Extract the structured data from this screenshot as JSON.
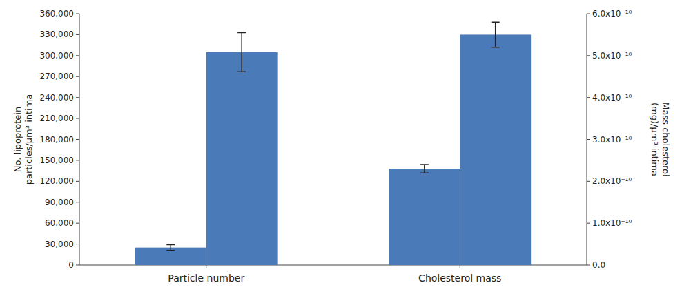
{
  "chart_data": {
    "type": "bar",
    "categories": [
      "Particle number",
      "Cholesterol mass"
    ],
    "y_label": "No. lipoprotein\nparticles/μm³ intima",
    "y2_label": "Mass cholesterol\n(mg)/μm³ intima",
    "ylim": [
      0,
      360000
    ],
    "yticks": [
      0,
      {
        "value": 30000,
        "label": "30,000"
      },
      {
        "value": 60000,
        "label": "60,000"
      },
      {
        "value": 90000,
        "label": "90,000"
      },
      {
        "value": 120000,
        "label": "120,000"
      },
      {
        "value": 150000,
        "label": "150,000"
      },
      {
        "value": 180000,
        "label": "180,000"
      },
      {
        "value": 210000,
        "label": "210,000"
      },
      {
        "value": 240000,
        "label": "240,000"
      },
      {
        "value": 270000,
        "label": "270,000"
      },
      {
        "value": 300000,
        "label": "300,000"
      },
      {
        "value": 330000,
        "label": "330,000"
      },
      {
        "value": 360000,
        "label": "360,000"
      }
    ],
    "y2lim": [
      0,
      6e-10
    ],
    "y2ticks": [
      {
        "value": 0,
        "label": "0.0"
      },
      {
        "value": 1e-10,
        "label": "1.0x10⁻¹⁰"
      },
      {
        "value": 2e-10,
        "label": "2.0x10⁻¹⁰"
      },
      {
        "value": 3e-10,
        "label": "3.0x10⁻¹⁰"
      },
      {
        "value": 4e-10,
        "label": "4.0x10⁻¹⁰"
      },
      {
        "value": 5e-10,
        "label": "5.0x10⁻¹⁰"
      },
      {
        "value": 6e-10,
        "label": "6.0x10⁻¹⁰"
      }
    ],
    "grid": false,
    "series": [
      {
        "values": [
          25000,
          null
        ],
        "errors": [
          4000,
          null
        ]
      },
      {
        "values": [
          305000,
          null
        ],
        "errors": [
          28000,
          null
        ]
      },
      {
        "axis": "y2",
        "values": [
          null,
          2.3e-10
        ],
        "errors": [
          null,
          1e-11
        ]
      },
      {
        "axis": "y2",
        "values": [
          null,
          5.5e-10
        ],
        "errors": [
          null,
          3e-11
        ]
      }
    ]
  }
}
